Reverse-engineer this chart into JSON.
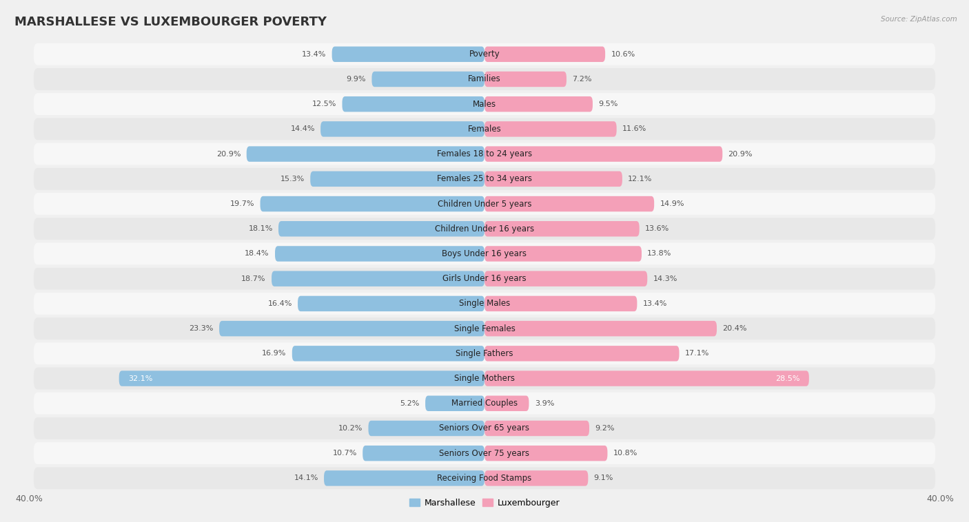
{
  "title": "MARSHALLESE VS LUXEMBOURGER POVERTY",
  "source": "Source: ZipAtlas.com",
  "categories": [
    "Poverty",
    "Families",
    "Males",
    "Females",
    "Females 18 to 24 years",
    "Females 25 to 34 years",
    "Children Under 5 years",
    "Children Under 16 years",
    "Boys Under 16 years",
    "Girls Under 16 years",
    "Single Males",
    "Single Females",
    "Single Fathers",
    "Single Mothers",
    "Married Couples",
    "Seniors Over 65 years",
    "Seniors Over 75 years",
    "Receiving Food Stamps"
  ],
  "marshallese": [
    13.4,
    9.9,
    12.5,
    14.4,
    20.9,
    15.3,
    19.7,
    18.1,
    18.4,
    18.7,
    16.4,
    23.3,
    16.9,
    32.1,
    5.2,
    10.2,
    10.7,
    14.1
  ],
  "luxembourger": [
    10.6,
    7.2,
    9.5,
    11.6,
    20.9,
    12.1,
    14.9,
    13.6,
    13.8,
    14.3,
    13.4,
    20.4,
    17.1,
    28.5,
    3.9,
    9.2,
    10.8,
    9.1
  ],
  "marshallese_color": "#8fc0e0",
  "luxembourger_color": "#f4a0b8",
  "marshallese_label": "Marshallese",
  "luxembourger_label": "Luxembourger",
  "xlim": 40.0,
  "bg_color": "#f0f0f0",
  "row_color_even": "#f7f7f7",
  "row_color_odd": "#e8e8e8",
  "title_fontsize": 13,
  "label_fontsize": 8.5,
  "value_fontsize": 8.0,
  "title_color": "#333333",
  "source_color": "#999999",
  "value_color": "#555555",
  "value_color_white": "#ffffff"
}
